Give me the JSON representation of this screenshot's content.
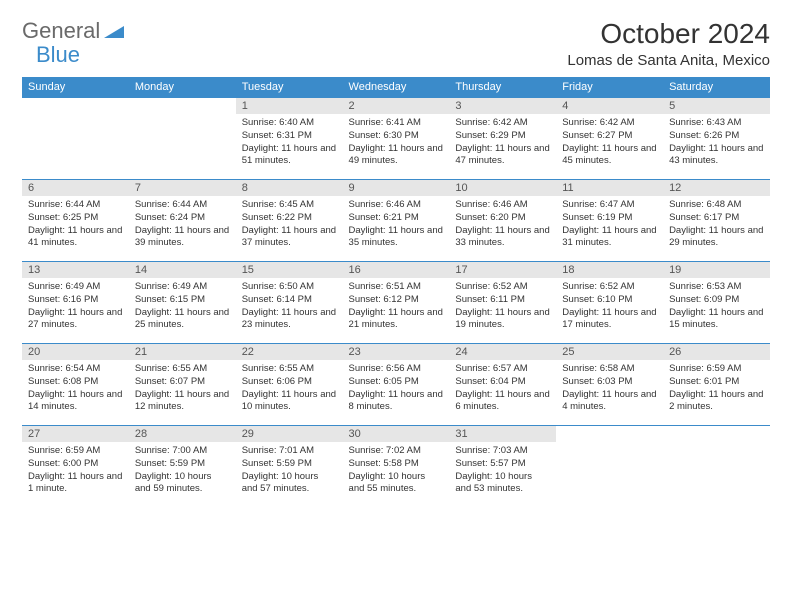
{
  "logo": {
    "part1": "General",
    "part2": "Blue",
    "part1_color": "#6a6a6a",
    "part2_color": "#3b8bca"
  },
  "title": "October 2024",
  "location": "Lomas de Santa Anita, Mexico",
  "calendar": {
    "header_bg": "#3b8bca",
    "header_fg": "#ffffff",
    "daynum_bg": "#e6e6e6",
    "border_color": "#3b8bca",
    "day_headers": [
      "Sunday",
      "Monday",
      "Tuesday",
      "Wednesday",
      "Thursday",
      "Friday",
      "Saturday"
    ],
    "first_weekday": 2,
    "num_days": 31,
    "days": [
      {
        "n": 1,
        "sunrise": "6:40 AM",
        "sunset": "6:31 PM",
        "daylight": "11 hours and 51 minutes."
      },
      {
        "n": 2,
        "sunrise": "6:41 AM",
        "sunset": "6:30 PM",
        "daylight": "11 hours and 49 minutes."
      },
      {
        "n": 3,
        "sunrise": "6:42 AM",
        "sunset": "6:29 PM",
        "daylight": "11 hours and 47 minutes."
      },
      {
        "n": 4,
        "sunrise": "6:42 AM",
        "sunset": "6:27 PM",
        "daylight": "11 hours and 45 minutes."
      },
      {
        "n": 5,
        "sunrise": "6:43 AM",
        "sunset": "6:26 PM",
        "daylight": "11 hours and 43 minutes."
      },
      {
        "n": 6,
        "sunrise": "6:44 AM",
        "sunset": "6:25 PM",
        "daylight": "11 hours and 41 minutes."
      },
      {
        "n": 7,
        "sunrise": "6:44 AM",
        "sunset": "6:24 PM",
        "daylight": "11 hours and 39 minutes."
      },
      {
        "n": 8,
        "sunrise": "6:45 AM",
        "sunset": "6:22 PM",
        "daylight": "11 hours and 37 minutes."
      },
      {
        "n": 9,
        "sunrise": "6:46 AM",
        "sunset": "6:21 PM",
        "daylight": "11 hours and 35 minutes."
      },
      {
        "n": 10,
        "sunrise": "6:46 AM",
        "sunset": "6:20 PM",
        "daylight": "11 hours and 33 minutes."
      },
      {
        "n": 11,
        "sunrise": "6:47 AM",
        "sunset": "6:19 PM",
        "daylight": "11 hours and 31 minutes."
      },
      {
        "n": 12,
        "sunrise": "6:48 AM",
        "sunset": "6:17 PM",
        "daylight": "11 hours and 29 minutes."
      },
      {
        "n": 13,
        "sunrise": "6:49 AM",
        "sunset": "6:16 PM",
        "daylight": "11 hours and 27 minutes."
      },
      {
        "n": 14,
        "sunrise": "6:49 AM",
        "sunset": "6:15 PM",
        "daylight": "11 hours and 25 minutes."
      },
      {
        "n": 15,
        "sunrise": "6:50 AM",
        "sunset": "6:14 PM",
        "daylight": "11 hours and 23 minutes."
      },
      {
        "n": 16,
        "sunrise": "6:51 AM",
        "sunset": "6:12 PM",
        "daylight": "11 hours and 21 minutes."
      },
      {
        "n": 17,
        "sunrise": "6:52 AM",
        "sunset": "6:11 PM",
        "daylight": "11 hours and 19 minutes."
      },
      {
        "n": 18,
        "sunrise": "6:52 AM",
        "sunset": "6:10 PM",
        "daylight": "11 hours and 17 minutes."
      },
      {
        "n": 19,
        "sunrise": "6:53 AM",
        "sunset": "6:09 PM",
        "daylight": "11 hours and 15 minutes."
      },
      {
        "n": 20,
        "sunrise": "6:54 AM",
        "sunset": "6:08 PM",
        "daylight": "11 hours and 14 minutes."
      },
      {
        "n": 21,
        "sunrise": "6:55 AM",
        "sunset": "6:07 PM",
        "daylight": "11 hours and 12 minutes."
      },
      {
        "n": 22,
        "sunrise": "6:55 AM",
        "sunset": "6:06 PM",
        "daylight": "11 hours and 10 minutes."
      },
      {
        "n": 23,
        "sunrise": "6:56 AM",
        "sunset": "6:05 PM",
        "daylight": "11 hours and 8 minutes."
      },
      {
        "n": 24,
        "sunrise": "6:57 AM",
        "sunset": "6:04 PM",
        "daylight": "11 hours and 6 minutes."
      },
      {
        "n": 25,
        "sunrise": "6:58 AM",
        "sunset": "6:03 PM",
        "daylight": "11 hours and 4 minutes."
      },
      {
        "n": 26,
        "sunrise": "6:59 AM",
        "sunset": "6:01 PM",
        "daylight": "11 hours and 2 minutes."
      },
      {
        "n": 27,
        "sunrise": "6:59 AM",
        "sunset": "6:00 PM",
        "daylight": "11 hours and 1 minute."
      },
      {
        "n": 28,
        "sunrise": "7:00 AM",
        "sunset": "5:59 PM",
        "daylight": "10 hours and 59 minutes."
      },
      {
        "n": 29,
        "sunrise": "7:01 AM",
        "sunset": "5:59 PM",
        "daylight": "10 hours and 57 minutes."
      },
      {
        "n": 30,
        "sunrise": "7:02 AM",
        "sunset": "5:58 PM",
        "daylight": "10 hours and 55 minutes."
      },
      {
        "n": 31,
        "sunrise": "7:03 AM",
        "sunset": "5:57 PM",
        "daylight": "10 hours and 53 minutes."
      }
    ]
  }
}
